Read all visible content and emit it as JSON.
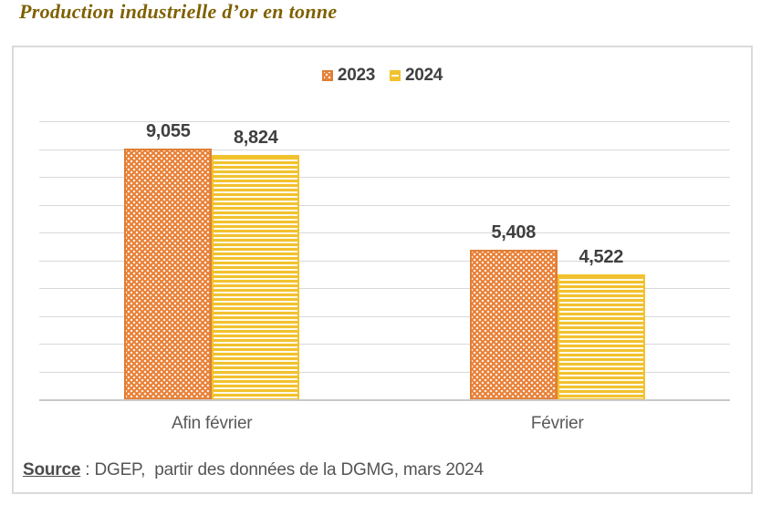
{
  "title": "Production industrielle d’or en tonne",
  "chart_data": {
    "type": "bar",
    "title": "Production industrielle d’or en tonne",
    "categories": [
      "Afin février",
      "Février"
    ],
    "series": [
      {
        "name": "2023",
        "values": [
          9055,
          5408
        ],
        "labels": [
          "9,055",
          "5,408"
        ],
        "color": "#E8823A",
        "pattern": "diamond-dots"
      },
      {
        "name": "2024",
        "values": [
          8824,
          4522
        ],
        "labels": [
          "8,824",
          "4,522"
        ],
        "color": "#F2C12E",
        "pattern": "horizontal-lines"
      }
    ],
    "xlabel": "",
    "ylabel": "",
    "ylim": [
      0,
      10000
    ],
    "gridline_step": 1000,
    "grid": true,
    "legend_position": "top",
    "y_axis_labels_visible": false,
    "data_labels": true
  },
  "source": {
    "label": "Source",
    "separator": " : ",
    "text": "DGEP,  partir des données de la DGMG, mars 2024"
  },
  "colors": {
    "title": "#7F6000",
    "series_2023": "#E8823A",
    "series_2024": "#F2C12E",
    "data_label": "#3F3F3F",
    "axis_label": "#595959",
    "gridline": "#D9D9D9",
    "box_border": "#DADADA"
  }
}
